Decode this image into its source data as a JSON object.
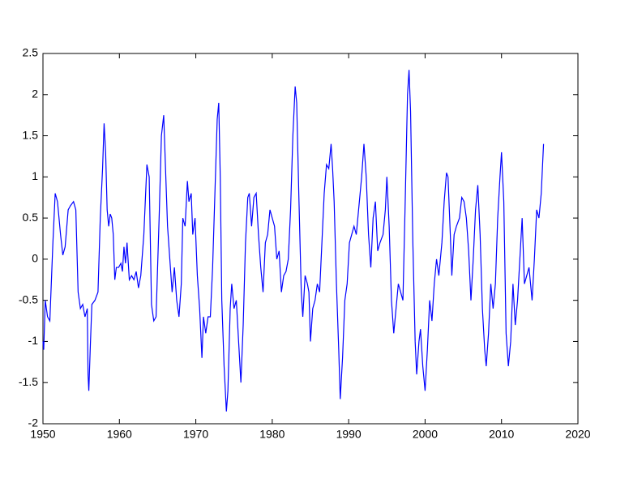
{
  "chart_data": {
    "type": "line",
    "color": "#0000ff",
    "xlim": [
      1950,
      2020
    ],
    "xticks": [
      1950,
      1960,
      1970,
      1980,
      1990,
      2000,
      2010,
      2020
    ],
    "ylim": [
      -2,
      2.5
    ],
    "yticks": [
      -2,
      -1.5,
      -1,
      -0.5,
      0,
      0.5,
      1,
      1.5,
      2,
      2.5
    ],
    "x": [
      1950.0,
      1950.1,
      1950.3,
      1950.6,
      1950.9,
      1951.3,
      1951.6,
      1951.9,
      1952.3,
      1952.6,
      1952.9,
      1953.3,
      1953.6,
      1954.0,
      1954.3,
      1954.6,
      1954.9,
      1955.2,
      1955.5,
      1955.8,
      1955.9,
      1956.0,
      1956.2,
      1956.4,
      1956.8,
      1957.2,
      1957.5,
      1957.8,
      1958.0,
      1958.2,
      1958.4,
      1958.6,
      1958.8,
      1959.0,
      1959.2,
      1959.4,
      1959.6,
      1959.9,
      1960.2,
      1960.4,
      1960.6,
      1960.8,
      1961.0,
      1961.3,
      1961.6,
      1961.9,
      1962.2,
      1962.5,
      1962.8,
      1963.2,
      1963.6,
      1963.9,
      1964.2,
      1964.5,
      1964.8,
      1965.2,
      1965.5,
      1965.8,
      1966.0,
      1966.3,
      1966.6,
      1966.9,
      1967.2,
      1967.5,
      1967.8,
      1968.1,
      1968.3,
      1968.6,
      1968.9,
      1969.1,
      1969.4,
      1969.6,
      1969.9,
      1970.2,
      1970.5,
      1970.8,
      1971.0,
      1971.3,
      1971.6,
      1971.9,
      1972.2,
      1972.5,
      1972.8,
      1973.0,
      1973.2,
      1973.4,
      1973.7,
      1974.0,
      1974.2,
      1974.5,
      1974.7,
      1975.0,
      1975.3,
      1975.6,
      1975.9,
      1976.2,
      1976.5,
      1976.8,
      1977.0,
      1977.3,
      1977.6,
      1977.9,
      1978.2,
      1978.5,
      1978.8,
      1979.1,
      1979.4,
      1979.7,
      1980.0,
      1980.3,
      1980.6,
      1980.9,
      1981.2,
      1981.5,
      1981.8,
      1982.1,
      1982.4,
      1982.7,
      1983.0,
      1983.2,
      1983.5,
      1983.8,
      1984.0,
      1984.3,
      1984.6,
      1984.8,
      1985.0,
      1985.3,
      1985.6,
      1985.9,
      1986.2,
      1986.5,
      1986.8,
      1987.1,
      1987.4,
      1987.7,
      1987.9,
      1988.1,
      1988.4,
      1988.7,
      1988.9,
      1989.2,
      1989.5,
      1989.8,
      1990.1,
      1990.4,
      1990.7,
      1991.0,
      1991.3,
      1991.7,
      1992.0,
      1992.3,
      1992.6,
      1992.9,
      1993.2,
      1993.5,
      1993.8,
      1994.1,
      1994.5,
      1994.8,
      1995.0,
      1995.3,
      1995.6,
      1995.9,
      1996.2,
      1996.5,
      1996.8,
      1997.1,
      1997.4,
      1997.7,
      1997.9,
      1998.1,
      1998.4,
      1998.7,
      1998.9,
      1999.2,
      1999.4,
      1999.7,
      2000.0,
      2000.3,
      2000.6,
      2000.9,
      2001.2,
      2001.5,
      2001.8,
      2002.2,
      2002.5,
      2002.8,
      2003.0,
      2003.3,
      2003.5,
      2003.8,
      2004.1,
      2004.5,
      2004.8,
      2005.1,
      2005.4,
      2005.7,
      2006.0,
      2006.3,
      2006.6,
      2006.9,
      2007.2,
      2007.5,
      2007.8,
      2008.0,
      2008.3,
      2008.6,
      2008.9,
      2009.2,
      2009.5,
      2009.8,
      2010.0,
      2010.3,
      2010.6,
      2010.9,
      2011.2,
      2011.5,
      2011.8,
      2012.1,
      2012.4,
      2012.7,
      2013.0,
      2013.3,
      2013.6,
      2014.0,
      2014.3,
      2014.6,
      2014.9,
      2015.2,
      2015.5
    ],
    "values": [
      -1.0,
      -1.1,
      -0.5,
      -0.7,
      -0.75,
      0.2,
      0.8,
      0.7,
      0.3,
      0.05,
      0.15,
      0.6,
      0.65,
      0.7,
      0.6,
      -0.4,
      -0.6,
      -0.55,
      -0.7,
      -0.6,
      -1.4,
      -1.6,
      -1.05,
      -0.55,
      -0.5,
      -0.4,
      0.5,
      1.1,
      1.65,
      1.3,
      0.6,
      0.4,
      0.55,
      0.5,
      0.3,
      -0.25,
      -0.1,
      -0.1,
      -0.05,
      -0.15,
      0.15,
      -0.05,
      0.2,
      -0.25,
      -0.2,
      -0.25,
      -0.15,
      -0.35,
      -0.2,
      0.3,
      1.15,
      1.0,
      -0.55,
      -0.75,
      -0.7,
      0.5,
      1.5,
      1.75,
      1.2,
      0.4,
      0.0,
      -0.4,
      -0.1,
      -0.5,
      -0.7,
      -0.3,
      0.5,
      0.4,
      0.95,
      0.7,
      0.8,
      0.3,
      0.5,
      -0.2,
      -0.6,
      -1.2,
      -0.7,
      -0.9,
      -0.7,
      -0.7,
      -0.1,
      0.8,
      1.7,
      1.9,
      1.0,
      -0.5,
      -1.3,
      -1.85,
      -1.6,
      -0.6,
      -0.3,
      -0.6,
      -0.5,
      -1.0,
      -1.5,
      -0.8,
      0.2,
      0.75,
      0.8,
      0.4,
      0.75,
      0.8,
      0.3,
      -0.1,
      -0.4,
      0.2,
      0.3,
      0.6,
      0.5,
      0.4,
      0.0,
      0.1,
      -0.4,
      -0.2,
      -0.15,
      0.0,
      0.6,
      1.5,
      2.1,
      1.9,
      0.7,
      -0.4,
      -0.7,
      -0.2,
      -0.3,
      -0.4,
      -1.0,
      -0.6,
      -0.5,
      -0.3,
      -0.4,
      0.2,
      0.8,
      1.15,
      1.1,
      1.4,
      1.1,
      0.7,
      -0.3,
      -1.1,
      -1.7,
      -1.2,
      -0.5,
      -0.3,
      0.2,
      0.3,
      0.4,
      0.3,
      0.6,
      1.0,
      1.4,
      1.0,
      0.3,
      -0.1,
      0.5,
      0.7,
      0.1,
      0.2,
      0.3,
      0.6,
      1.0,
      0.4,
      -0.5,
      -0.9,
      -0.6,
      -0.3,
      -0.4,
      -0.5,
      0.7,
      2.0,
      2.3,
      1.8,
      0.2,
      -1.0,
      -1.4,
      -1.0,
      -0.85,
      -1.3,
      -1.6,
      -1.1,
      -0.5,
      -0.75,
      -0.3,
      0.0,
      -0.2,
      0.2,
      0.7,
      1.05,
      1.0,
      0.3,
      -0.2,
      0.3,
      0.4,
      0.5,
      0.75,
      0.7,
      0.5,
      0.1,
      -0.5,
      0.0,
      0.6,
      0.9,
      0.3,
      -0.6,
      -1.1,
      -1.3,
      -0.9,
      -0.3,
      -0.6,
      -0.3,
      0.5,
      1.0,
      1.3,
      0.7,
      -0.9,
      -1.3,
      -1.0,
      -0.3,
      -0.8,
      -0.5,
      0.0,
      0.5,
      -0.3,
      -0.2,
      -0.1,
      -0.5,
      0.0,
      0.6,
      0.5,
      0.8,
      1.4
    ]
  }
}
